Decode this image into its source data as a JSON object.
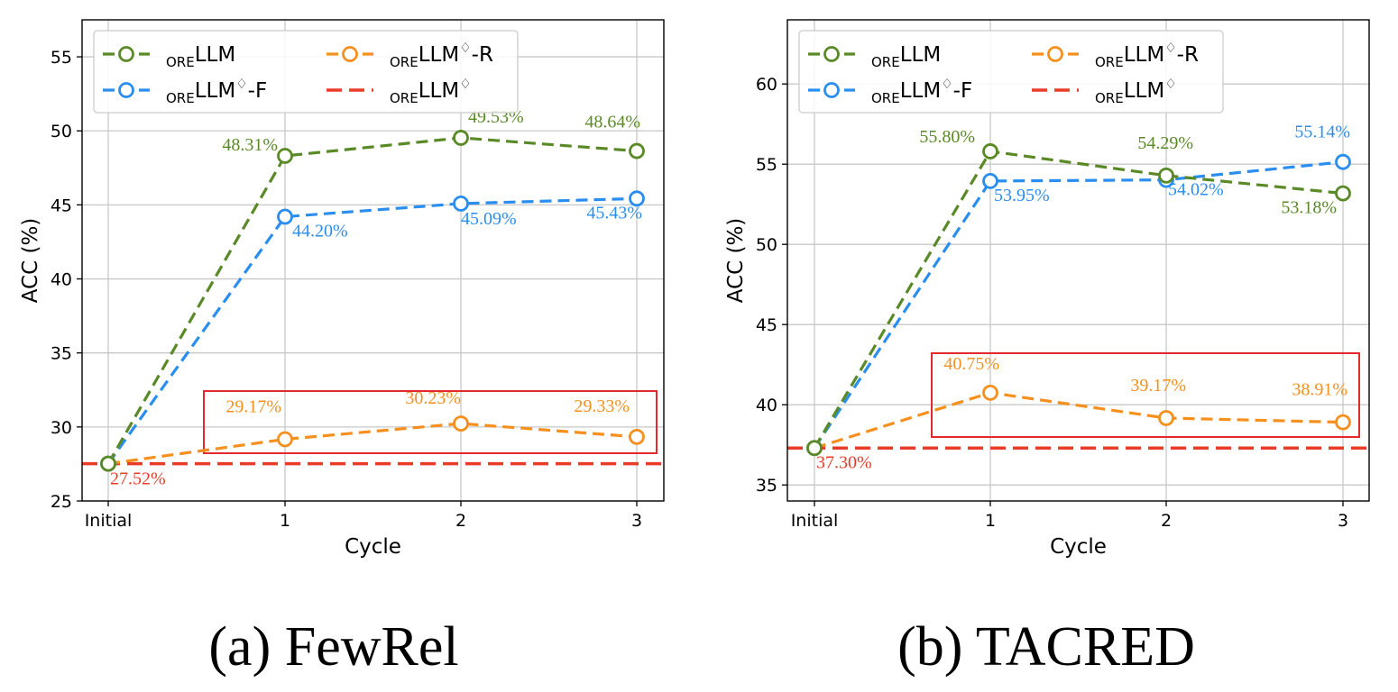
{
  "colors": {
    "green": "#5a8a27",
    "blue": "#2a8ef0",
    "orange": "#f5901e",
    "red": "#e83c29",
    "box": "#e3282e",
    "grid": "#c8c8c8"
  },
  "legend_entries": [
    {
      "sub": "ORE",
      "main": "LLM",
      "sup": "",
      "tail": ""
    },
    {
      "sub": "ORE",
      "main": "LLM",
      "sup": "♢",
      "tail": "-R"
    },
    {
      "sub": "ORE",
      "main": "LLM",
      "sup": "♢",
      "tail": "-F"
    },
    {
      "sub": "ORE",
      "main": "LLM",
      "sup": "♢",
      "tail": ""
    }
  ],
  "chart_data": [
    {
      "type": "line",
      "caption": "(a)  FewRel",
      "xlabel": "Cycle",
      "ylabel": "ACC (%)",
      "categories": [
        "Initial",
        "1",
        "2",
        "3"
      ],
      "ylim": [
        25,
        57.5
      ],
      "yticks": [
        25,
        30,
        35,
        40,
        45,
        50,
        55
      ],
      "grid": true,
      "legend": "top-left",
      "baseline": {
        "value": 27.52,
        "label": "27.52%"
      },
      "series": [
        {
          "key": "green",
          "values": [
            27.52,
            48.31,
            49.53,
            48.64
          ],
          "labels": [
            "",
            "48.31%",
            "49.53%",
            "48.64%"
          ]
        },
        {
          "key": "blue",
          "values": [
            27.52,
            44.2,
            45.09,
            45.43
          ],
          "labels": [
            "",
            "44.20%",
            "45.09%",
            "45.43%"
          ]
        },
        {
          "key": "orange",
          "values": [
            27.52,
            29.17,
            30.23,
            29.33
          ],
          "labels": [
            "",
            "29.17%",
            "30.23%",
            "29.33%"
          ]
        }
      ]
    },
    {
      "type": "line",
      "caption": "(b)  TACRED",
      "xlabel": "Cycle",
      "ylabel": "ACC (%)",
      "categories": [
        "Initial",
        "1",
        "2",
        "3"
      ],
      "ylim": [
        34,
        64
      ],
      "yticks": [
        35,
        40,
        45,
        50,
        55,
        60
      ],
      "grid": true,
      "legend": "top-left",
      "baseline": {
        "value": 37.3,
        "label": "37.30%"
      },
      "series": [
        {
          "key": "green",
          "values": [
            37.3,
            55.8,
            54.29,
            53.18
          ],
          "labels": [
            "",
            "55.80%",
            "54.29%",
            "53.18%"
          ]
        },
        {
          "key": "blue",
          "values": [
            37.3,
            53.95,
            54.02,
            55.14
          ],
          "labels": [
            "",
            "53.95%",
            "54.02%",
            "55.14%"
          ]
        },
        {
          "key": "orange",
          "values": [
            37.3,
            40.75,
            39.17,
            38.91
          ],
          "labels": [
            "",
            "40.75%",
            "39.17%",
            "38.91%"
          ]
        }
      ]
    }
  ]
}
